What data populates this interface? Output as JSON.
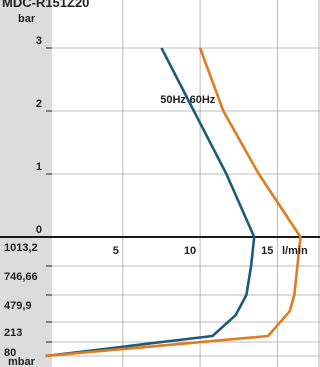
{
  "chart_data": {
    "type": "line",
    "title": "MDC-R151Z20",
    "upper_panel": {
      "ylabel": "bar",
      "ylim": [
        0,
        3.5
      ],
      "yticks": [
        0,
        1,
        2,
        3
      ],
      "ytick_labels": [
        "0",
        "1",
        "2",
        "3"
      ]
    },
    "lower_panel": {
      "ylabel": "mbar",
      "yticks": [
        1013.2,
        746.66,
        479.9,
        213,
        80
      ],
      "ytick_labels": [
        "1013,2",
        "746,66",
        "479,9",
        "213",
        "80"
      ]
    },
    "x_axis": {
      "label": "l/min",
      "xlim": [
        0,
        18
      ],
      "xticks": [
        5,
        10,
        15
      ],
      "xtick_labels": [
        "5",
        "10",
        "15"
      ]
    },
    "series": [
      {
        "name": "50Hz",
        "color": "#1f5a7a",
        "pressure_bar": [
          [
            7.5,
            3
          ],
          [
            9.6,
            2
          ],
          [
            11.7,
            1
          ],
          [
            13.5,
            0
          ]
        ],
        "vacuum_mbar": [
          [
            13.5,
            1013.2
          ],
          [
            13.3,
            746.66
          ],
          [
            13.0,
            479.9
          ],
          [
            12.3,
            280
          ],
          [
            10.8,
            120
          ],
          [
            0.0,
            0
          ]
        ]
      },
      {
        "name": "60Hz",
        "color": "#e07b1f",
        "pressure_bar": [
          [
            10.0,
            3
          ],
          [
            11.5,
            2
          ],
          [
            13.8,
            1
          ],
          [
            16.5,
            0
          ]
        ],
        "vacuum_mbar": [
          [
            16.5,
            1013.2
          ],
          [
            16.3,
            746.66
          ],
          [
            16.1,
            479.9
          ],
          [
            15.8,
            320
          ],
          [
            14.4,
            120
          ],
          [
            0.0,
            0
          ]
        ]
      }
    ]
  }
}
